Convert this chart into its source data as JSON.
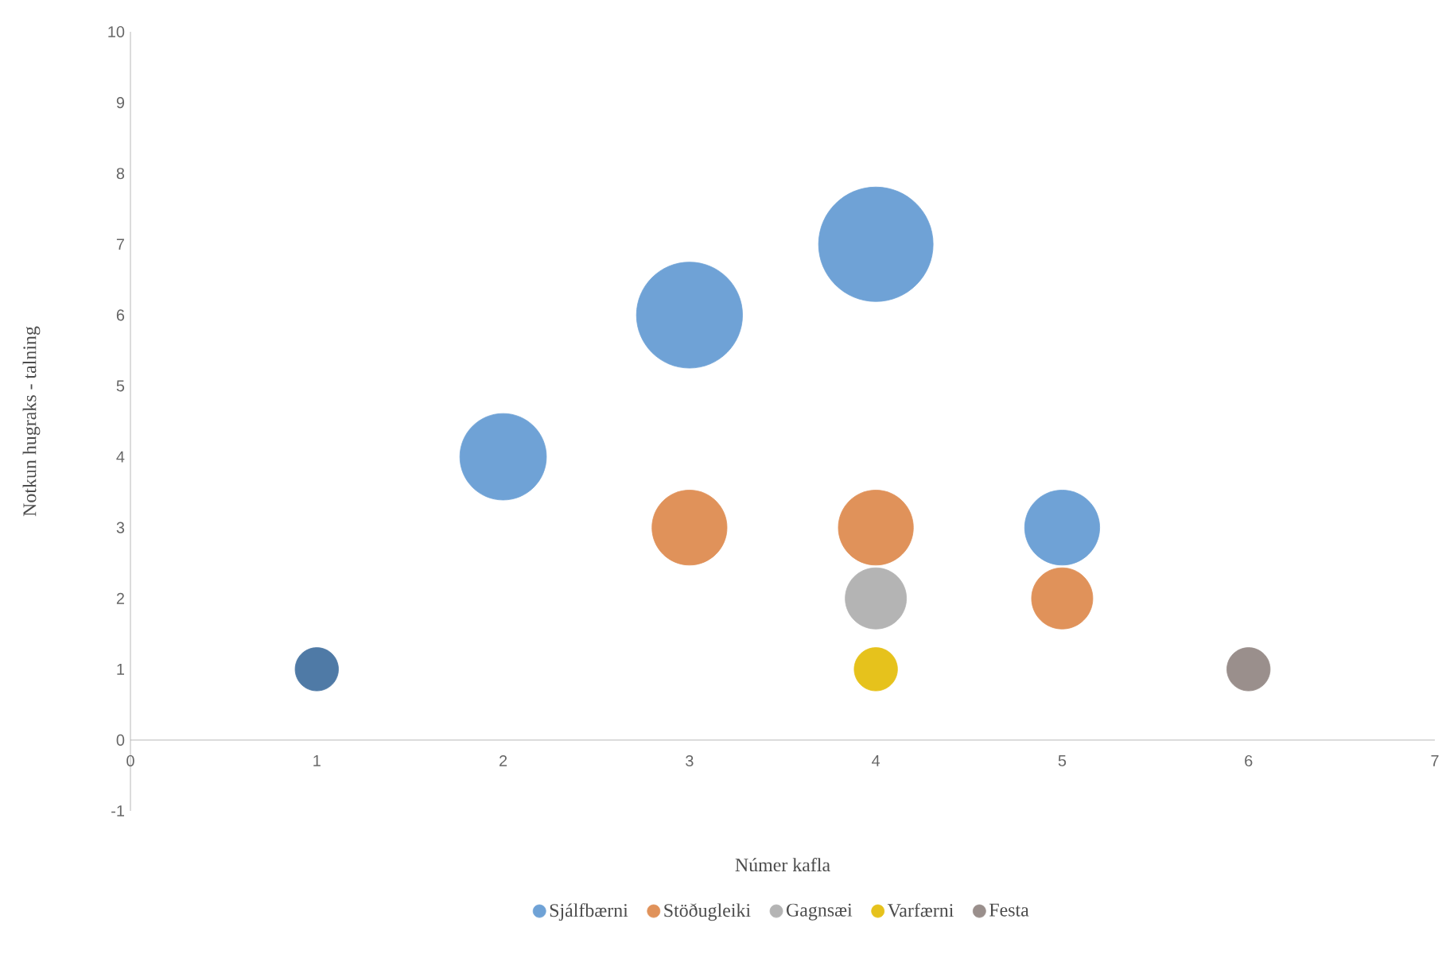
{
  "chart_data": {
    "type": "bubble",
    "xlabel": "Númer kafla",
    "ylabel": "Notkun hugraks - talning",
    "xlim": [
      0,
      7
    ],
    "xticks": [
      0,
      1,
      2,
      3,
      4,
      5,
      6,
      7
    ],
    "ylim": [
      -1,
      10
    ],
    "yticks": [
      -1,
      0,
      1,
      2,
      3,
      4,
      5,
      6,
      7,
      8,
      9,
      10
    ],
    "legend": "bottom",
    "series": [
      {
        "name": "Sjálfbærni",
        "color": "#6fa2d6",
        "colors": [
          "#4f7aa6",
          "#6fa2d6",
          "#6fa2d6",
          "#6fa2d6",
          "#6fa2d6"
        ],
        "x": [
          1,
          2,
          3,
          4,
          5
        ],
        "values": [
          1,
          4,
          6,
          7,
          3
        ],
        "sizes": [
          0.143,
          0.571,
          0.857,
          1,
          0.429
        ]
      },
      {
        "name": "Stöðugleiki",
        "color": "#e0925a",
        "x": [
          3,
          4,
          5
        ],
        "values": [
          3,
          3,
          2
        ],
        "sizes": [
          0.429,
          0.429,
          0.286
        ]
      },
      {
        "name": "Gagnsæi",
        "color": "#b4b4b4",
        "x": [
          4
        ],
        "values": [
          2
        ],
        "sizes": [
          0.286
        ]
      },
      {
        "name": "Varfærni",
        "color": "#e6c21c",
        "x": [
          4
        ],
        "values": [
          1
        ],
        "sizes": [
          0.143
        ]
      },
      {
        "name": "Festa",
        "color": "#9a8f8c",
        "x": [
          6
        ],
        "values": [
          1
        ],
        "sizes": [
          0.143
        ]
      }
    ]
  }
}
